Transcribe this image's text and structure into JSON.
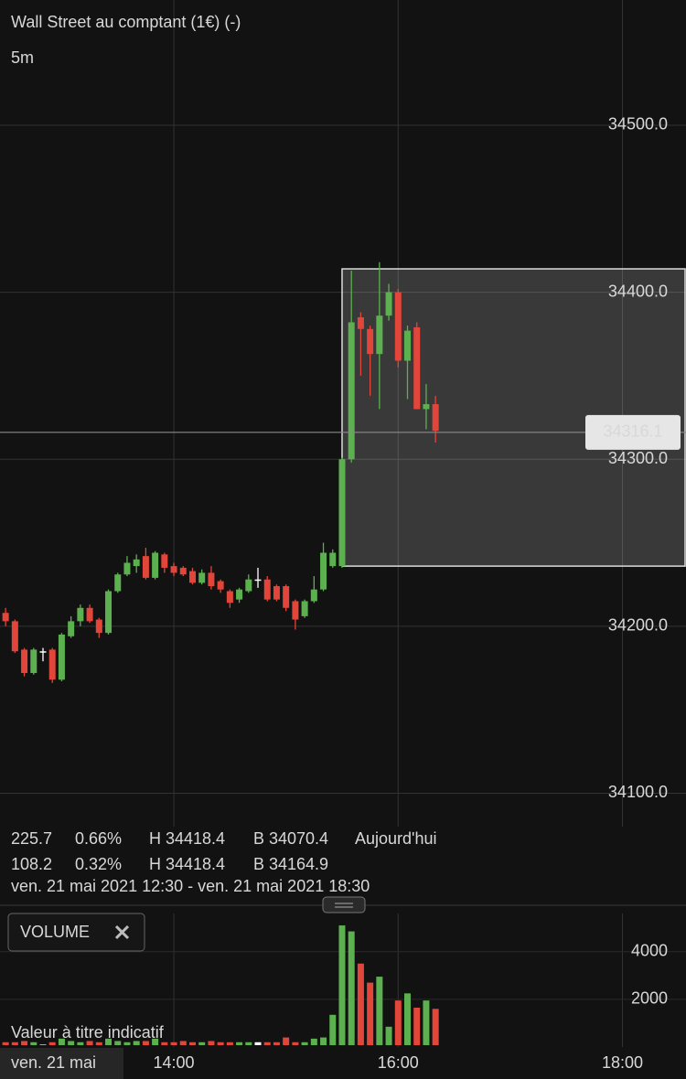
{
  "header": {
    "title": "Wall Street au comptant (1€) (-)",
    "timeframe": "5m"
  },
  "chart_data": [
    {
      "type": "candlestick",
      "x": [
        "12:30",
        "12:35",
        "12:40",
        "12:45",
        "12:50",
        "12:55",
        "13:00",
        "13:05",
        "13:10",
        "13:15",
        "13:20",
        "13:25",
        "13:30",
        "13:35",
        "13:40",
        "13:45",
        "13:50",
        "13:55",
        "14:00",
        "14:05",
        "14:10",
        "14:15",
        "14:20",
        "14:25",
        "14:30",
        "14:35",
        "14:40",
        "14:45",
        "14:50",
        "14:55",
        "15:00",
        "15:05",
        "15:10",
        "15:15",
        "15:20",
        "15:25",
        "15:30",
        "15:35",
        "15:40",
        "15:45",
        "15:50",
        "15:55",
        "16:00",
        "16:05",
        "16:10",
        "16:15",
        "16:20"
      ],
      "open": [
        34208,
        34203,
        34186,
        34172,
        34185,
        34186,
        34168,
        34194,
        34203,
        34211,
        34204,
        34196,
        34221,
        34231,
        34236,
        34242,
        34229,
        34243,
        34236,
        34235,
        34233,
        34226,
        34232,
        34227,
        34221,
        34216,
        34221,
        34228,
        34228,
        34224,
        34224,
        34215,
        34206,
        34215,
        34222,
        34236,
        34236,
        34300,
        34385,
        34378,
        34363,
        34386,
        34400,
        34359,
        34379,
        34330,
        34333
      ],
      "high": [
        34211,
        34204,
        34187,
        34187,
        34187,
        34187,
        34196,
        34206,
        34213,
        34213,
        34205,
        34222,
        34232,
        34242,
        34243,
        34247,
        34245,
        34244,
        34238,
        34236,
        34235,
        34234,
        34236,
        34228,
        34222,
        34223,
        34231,
        34235,
        34230,
        34225,
        34225,
        34216,
        34216,
        34230,
        34250,
        34246,
        34301,
        34413,
        34388,
        34380,
        34418,
        34405,
        34402,
        34380,
        34382,
        34345,
        34338
      ],
      "low": [
        34200,
        34184,
        34170,
        34171,
        34179,
        34166,
        34167,
        34193,
        34200,
        34202,
        34193,
        34195,
        34220,
        34230,
        34232,
        34228,
        34228,
        34232,
        34230,
        34230,
        34225,
        34225,
        34222,
        34220,
        34211,
        34214,
        34220,
        34223,
        34215,
        34215,
        34209,
        34198,
        34205,
        34214,
        34221,
        34235,
        34235,
        34298,
        34350,
        34338,
        34330,
        34383,
        34355,
        34336,
        34330,
        34318,
        34310
      ],
      "close": [
        34203,
        34185,
        34172,
        34186,
        34185,
        34168,
        34195,
        34203,
        34211,
        34203,
        34196,
        34221,
        34231,
        34238,
        34240,
        34229,
        34244,
        34235,
        34232,
        34231,
        34226,
        34232,
        34224,
        34222,
        34214,
        34222,
        34228,
        34228,
        34216,
        34216,
        34211,
        34204,
        34215,
        34222,
        34244,
        34244,
        34300,
        34382,
        34378,
        34363,
        34386,
        34400,
        34359,
        34377,
        34330,
        34333,
        34317
      ],
      "up_color": "#5cb04f",
      "down_color": "#e2453a",
      "flat_color": "#ffffff",
      "ylim": [
        34080,
        34575
      ],
      "yticks": [
        {
          "value": 34100,
          "label": "34100.0"
        },
        {
          "value": 34200,
          "label": "34200.0"
        },
        {
          "value": 34300,
          "label": "34300.0"
        },
        {
          "value": 34400,
          "label": "34400.0"
        },
        {
          "value": 34500,
          "label": "34500.0"
        }
      ],
      "xlim": [
        "12:27",
        "18:34"
      ],
      "xticks": [
        "14:00",
        "16:00",
        "18:00"
      ],
      "last_price": 34316.1,
      "highlight": {
        "x_start": "15:30",
        "y_range": [
          34236,
          34414
        ]
      },
      "grid": true
    },
    {
      "type": "bar",
      "label": "VOLUME",
      "values": [
        200,
        200,
        250,
        200,
        100,
        200,
        350,
        250,
        200,
        250,
        200,
        350,
        250,
        200,
        250,
        250,
        350,
        200,
        200,
        250,
        200,
        200,
        250,
        200,
        200,
        200,
        200,
        200,
        200,
        200,
        400,
        200,
        200,
        350,
        400,
        1350,
        5100,
        4850,
        3500,
        2700,
        2950,
        850,
        1950,
        2250,
        1650,
        1950,
        1600
      ],
      "ylim": [
        0,
        5600
      ],
      "yticks": [
        2000,
        4000
      ],
      "grid": true
    }
  ],
  "stats": [
    {
      "change": 225.7,
      "change_pct": "0.66%",
      "high": "H 34418.4",
      "low": "B 34070.4",
      "period": "Aujourd'hui"
    },
    {
      "change": 108.2,
      "change_pct": "0.32%",
      "high": "H 34418.4",
      "low": "B 34164.9"
    }
  ],
  "date_range": "ven. 21 mai 2021 12:30 - ven. 21 mai 2021 18:30",
  "watermark": "Valeur à titre indicatif",
  "date_label": "ven. 21 mai"
}
